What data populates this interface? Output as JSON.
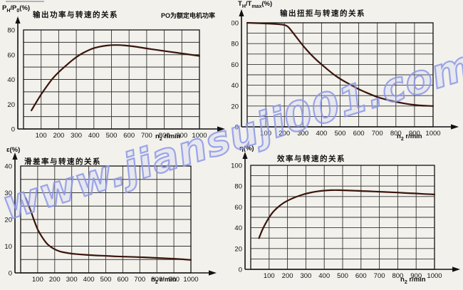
{
  "page": {
    "watermark_text": "www.jiansuji001.com",
    "watermark_color": "#8c98e6",
    "background_color": "#f2f1ec",
    "curve_color": "#3a150c"
  },
  "chart_data": [
    {
      "id": "output-power-vs-speed",
      "type": "line",
      "title": "输出功率与转速的关系",
      "note": "PO为额定电机功率",
      "ylabel": "P_H/P_0(%)",
      "xlabel": "n_2  r/min",
      "xlim": [
        0,
        1000
      ],
      "ylim": [
        0,
        80
      ],
      "x_grid_step": 100,
      "y_grid_step": 10,
      "x_ticks": [
        100,
        200,
        300,
        400,
        500,
        600,
        700,
        800,
        900,
        1000
      ],
      "y_ticks": [
        0,
        20,
        40,
        60,
        80
      ],
      "grid": true,
      "line_color": "#3a150c",
      "points": [
        [
          45,
          15
        ],
        [
          70,
          21
        ],
        [
          100,
          28
        ],
        [
          130,
          34
        ],
        [
          160,
          40
        ],
        [
          200,
          46
        ],
        [
          240,
          51
        ],
        [
          280,
          56
        ],
        [
          320,
          60
        ],
        [
          360,
          63
        ],
        [
          400,
          65.5
        ],
        [
          450,
          67
        ],
        [
          500,
          67.8
        ],
        [
          550,
          67.8
        ],
        [
          600,
          67.2
        ],
        [
          650,
          66.2
        ],
        [
          700,
          65
        ],
        [
          750,
          64
        ],
        [
          800,
          63
        ],
        [
          850,
          62
        ],
        [
          900,
          61
        ],
        [
          950,
          60
        ],
        [
          1000,
          59
        ]
      ]
    },
    {
      "id": "output-torque-vs-speed",
      "type": "line",
      "title": "输出扭拒与转速的关系",
      "note": "",
      "ylabel": "T_H/T_max(%)",
      "xlabel": "n_2  r/min",
      "xlim": [
        0,
        1000
      ],
      "ylim": [
        0,
        100
      ],
      "x_grid_step": 100,
      "y_grid_step": 10,
      "x_ticks": [
        100,
        200,
        300,
        400,
        500,
        600,
        700,
        800,
        900,
        1000
      ],
      "y_ticks": [
        0,
        20,
        40,
        60,
        80,
        100
      ],
      "grid": true,
      "line_color": "#3a150c",
      "points": [
        [
          0,
          100
        ],
        [
          60,
          99.6
        ],
        [
          120,
          99.2
        ],
        [
          180,
          98.5
        ],
        [
          215,
          97.5
        ],
        [
          240,
          92
        ],
        [
          270,
          85
        ],
        [
          300,
          78
        ],
        [
          340,
          70
        ],
        [
          380,
          63
        ],
        [
          420,
          57
        ],
        [
          460,
          51
        ],
        [
          500,
          46
        ],
        [
          540,
          42
        ],
        [
          580,
          38
        ],
        [
          620,
          34.5
        ],
        [
          660,
          31.5
        ],
        [
          700,
          28.5
        ],
        [
          740,
          26.5
        ],
        [
          780,
          24.8
        ],
        [
          820,
          23.3
        ],
        [
          860,
          22
        ],
        [
          900,
          21
        ],
        [
          950,
          20.3
        ],
        [
          1000,
          20
        ]
      ]
    },
    {
      "id": "slip-rate-vs-speed",
      "type": "line",
      "title": "滑差率与转速的关系",
      "note": "",
      "ylabel": "ε(%)",
      "xlabel": "n_2  r/min",
      "xlim": [
        0,
        1000
      ],
      "ylim": [
        0,
        40
      ],
      "x_grid_step": 100,
      "y_grid_step": 5,
      "x_ticks": [
        100,
        200,
        300,
        400,
        500,
        600,
        700,
        800,
        900,
        1000
      ],
      "y_ticks": [
        0,
        10,
        20,
        30,
        40
      ],
      "grid": true,
      "line_color": "#3a150c",
      "points": [
        [
          30,
          28
        ],
        [
          45,
          25.5
        ],
        [
          60,
          23.2
        ],
        [
          75,
          20.3
        ],
        [
          90,
          17.8
        ],
        [
          100,
          16.2
        ],
        [
          115,
          14.5
        ],
        [
          130,
          13
        ],
        [
          150,
          11.2
        ],
        [
          170,
          10
        ],
        [
          200,
          8.8
        ],
        [
          230,
          8
        ],
        [
          260,
          7.6
        ],
        [
          300,
          7.2
        ],
        [
          350,
          6.9
        ],
        [
          400,
          6.7
        ],
        [
          450,
          6.5
        ],
        [
          500,
          6.4
        ],
        [
          550,
          6.2
        ],
        [
          600,
          6.1
        ],
        [
          650,
          6
        ],
        [
          700,
          5.9
        ],
        [
          750,
          5.75
        ],
        [
          800,
          5.6
        ],
        [
          850,
          5.45
        ],
        [
          900,
          5.3
        ],
        [
          950,
          5.1
        ],
        [
          1000,
          4.85
        ]
      ]
    },
    {
      "id": "efficiency-vs-speed",
      "type": "line",
      "title": "效率与转速的关系",
      "note": "",
      "ylabel": "η(%)",
      "xlabel": "n_2  r/min",
      "xlim": [
        0,
        1000
      ],
      "ylim": [
        0,
        100
      ],
      "x_grid_step": 100,
      "y_grid_step": 10,
      "x_ticks": [
        100,
        200,
        300,
        400,
        500,
        600,
        700,
        800,
        900,
        1000
      ],
      "y_ticks": [
        0,
        20,
        40,
        60,
        80,
        100
      ],
      "grid": true,
      "line_color": "#3a150c",
      "points": [
        [
          45,
          30
        ],
        [
          60,
          37
        ],
        [
          80,
          44
        ],
        [
          100,
          50
        ],
        [
          120,
          55
        ],
        [
          140,
          58.5
        ],
        [
          160,
          61.5
        ],
        [
          180,
          64
        ],
        [
          200,
          66
        ],
        [
          230,
          68.5
        ],
        [
          260,
          70.5
        ],
        [
          300,
          72.8
        ],
        [
          340,
          74.3
        ],
        [
          380,
          75.4
        ],
        [
          420,
          76
        ],
        [
          460,
          76.2
        ],
        [
          500,
          76
        ],
        [
          550,
          75.7
        ],
        [
          600,
          75.3
        ],
        [
          650,
          75
        ],
        [
          700,
          74.6
        ],
        [
          750,
          74.2
        ],
        [
          800,
          73.8
        ],
        [
          850,
          73.3
        ],
        [
          900,
          72.9
        ],
        [
          950,
          72.4
        ],
        [
          1000,
          72
        ]
      ]
    }
  ]
}
